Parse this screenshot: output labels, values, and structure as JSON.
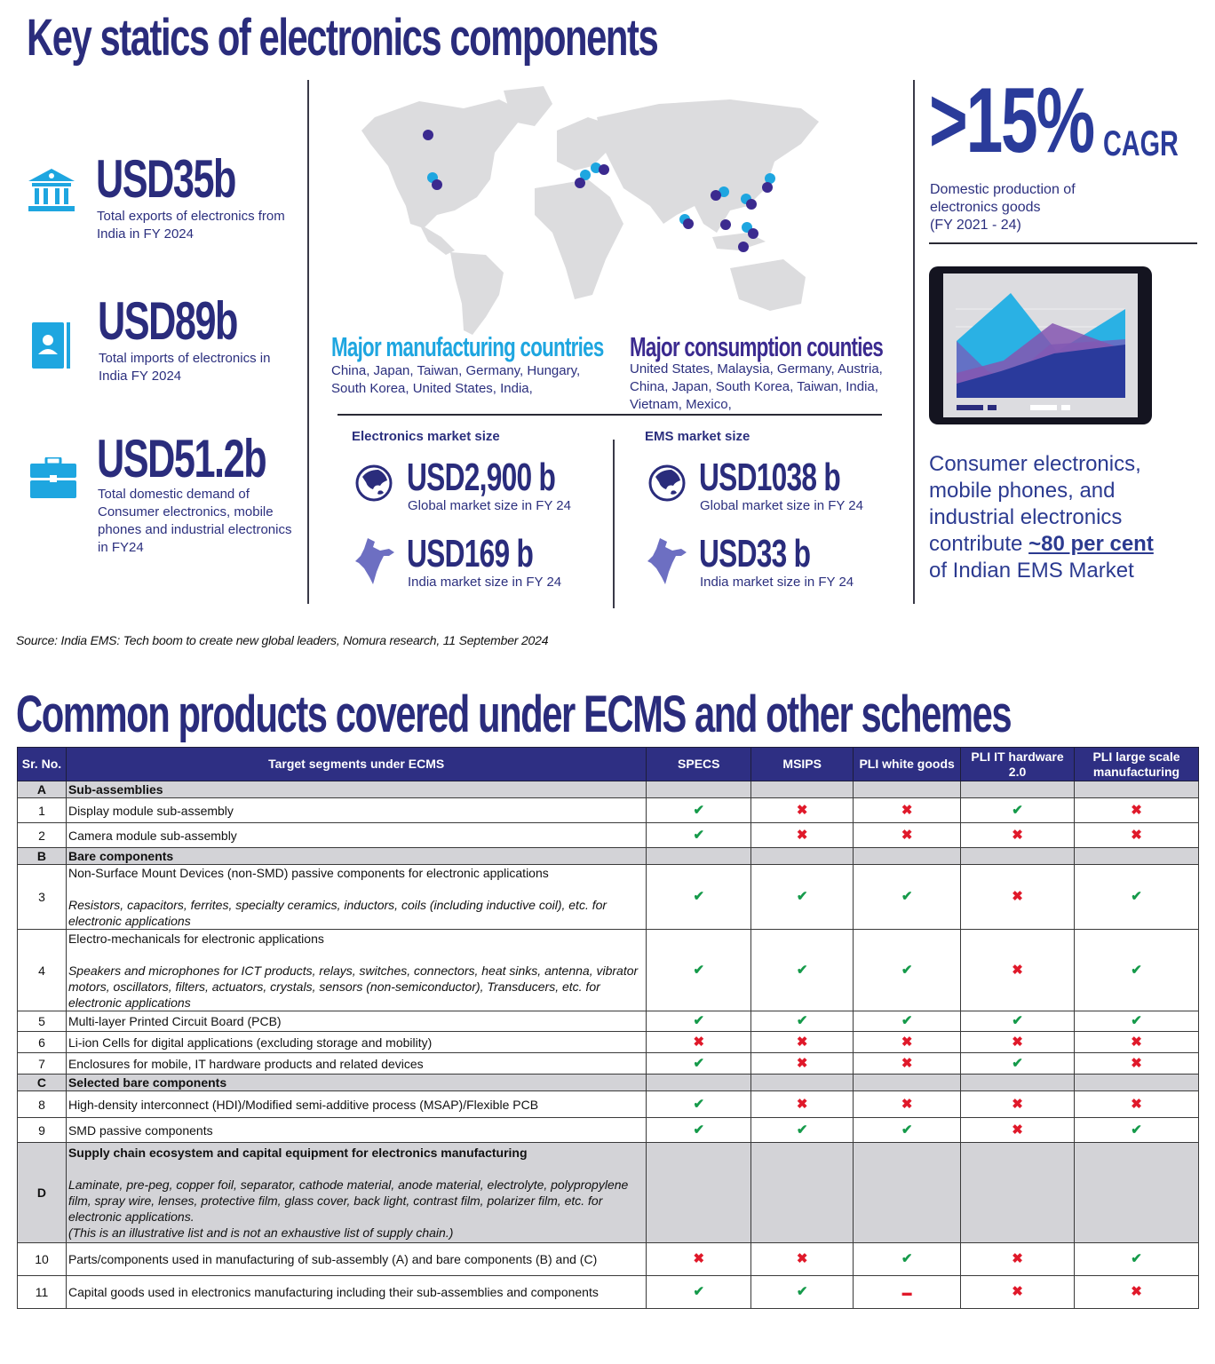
{
  "section1": {
    "title": "Key statics of electronics components",
    "stats": [
      {
        "icon": "bank-icon",
        "value": "USD35b",
        "description": "Total exports of electronics from India in FY 2024"
      },
      {
        "icon": "contact-book-icon",
        "value": "USD89b",
        "description": "Total imports of electronics in India FY 2024"
      },
      {
        "icon": "briefcase-icon",
        "value": "USD51.2b",
        "description": "Total domestic demand of Consumer electronics, mobile phones and industrial electronics in FY24"
      }
    ],
    "map": {
      "manufacturing": {
        "heading": "Major manufacturing countries",
        "countries": "China, Japan, Taiwan, Germany, Hungary, South Korea, United States, India,",
        "color": "#1ea6e0"
      },
      "consumption": {
        "heading": "Major consumption counties",
        "countries": "United States, Malaysia, Germany, Austria, China, Japan, South Korea, Taiwan, India, Vietnam, Mexico,",
        "color": "#3b2a8f"
      }
    },
    "market": {
      "electronics": {
        "label": "Electronics market size",
        "global": {
          "value": "USD2,900 b",
          "description": "Global market size in FY 24"
        },
        "india": {
          "value": "USD169 b",
          "description": "India market size in FY 24"
        }
      },
      "ems": {
        "label": "EMS market size",
        "global": {
          "value": "USD1038 b",
          "description": "Global market size in FY 24"
        },
        "india": {
          "value": "USD33 b",
          "description": "India market size in FY 24"
        }
      }
    },
    "cagr": {
      "value": ">15%",
      "unit": "CAGR",
      "description_line1": "Domestic production of",
      "description_line2": "electronics goods",
      "description_line3": "(FY 2021 - 24)"
    },
    "contribution": {
      "line1": "Consumer electronics,",
      "line2": "mobile phones, and",
      "line3": "industrial electronics",
      "line4_prefix": "contribute ",
      "highlight": "~80 per cent",
      "line5": "of Indian EMS Market"
    },
    "source": "Source: India EMS: Tech boom to create new global leaders, Nomura research, 11 September 2024"
  },
  "section2": {
    "title": "Common products covered under ECMS and other schemes",
    "table": {
      "headers": [
        "Sr. No.",
        "Target segments under ECMS",
        "SPECS",
        "MSIPS",
        "PLI white goods",
        "PLI IT hardware 2.0",
        "PLI large scale manufacturing"
      ],
      "symbols": {
        "yes": "✔",
        "no": "✖",
        "partial": "▬"
      },
      "rows": [
        {
          "type": "section",
          "sr": "A",
          "title": "Sub-assemblies"
        },
        {
          "type": "item",
          "sr": "1",
          "title": "Display module sub-assembly",
          "detail": "",
          "marks": [
            "yes",
            "no",
            "no",
            "yes",
            "no"
          ]
        },
        {
          "type": "item",
          "sr": "2",
          "title": "Camera module sub-assembly",
          "detail": "",
          "marks": [
            "yes",
            "no",
            "no",
            "no",
            "no"
          ]
        },
        {
          "type": "section",
          "sr": "B",
          "title": "Bare components"
        },
        {
          "type": "item",
          "sr": "3",
          "title": "Non-Surface Mount Devices (non-SMD) passive components for electronic applications",
          "detail": "Resistors, capacitors, ferrites, specialty ceramics, inductors, coils (including inductive coil), etc. for electronic applications",
          "marks": [
            "yes",
            "yes",
            "yes",
            "no",
            "yes"
          ]
        },
        {
          "type": "item",
          "sr": "4",
          "title": "Electro-mechanicals for electronic applications",
          "detail": "Speakers and microphones for ICT products, relays, switches, connectors, heat sinks, antenna, vibrator motors, oscillators, filters, actuators, crystals, sensors (non-semiconductor), Transducers, etc. for electronic applications",
          "marks": [
            "yes",
            "yes",
            "yes",
            "no",
            "yes"
          ]
        },
        {
          "type": "item",
          "sr": "5",
          "title": "Multi-layer Printed Circuit Board (PCB)",
          "detail": "",
          "marks": [
            "yes",
            "yes",
            "yes",
            "yes",
            "yes"
          ]
        },
        {
          "type": "item",
          "sr": "6",
          "title": "Li-ion Cells for digital applications (excluding storage and mobility)",
          "detail": "",
          "marks": [
            "no",
            "no",
            "no",
            "no",
            "no"
          ]
        },
        {
          "type": "item",
          "sr": "7",
          "title": "Enclosures for mobile, IT hardware products and related devices",
          "detail": "",
          "marks": [
            "yes",
            "no",
            "no",
            "yes",
            "no"
          ]
        },
        {
          "type": "section",
          "sr": "C",
          "title": "Selected bare components"
        },
        {
          "type": "item",
          "sr": "8",
          "title": "High-density interconnect (HDI)/Modified semi-additive process (MSAP)/Flexible PCB",
          "detail": "",
          "marks": [
            "yes",
            "no",
            "no",
            "no",
            "no"
          ]
        },
        {
          "type": "item",
          "sr": "9",
          "title": "SMD passive components",
          "detail": "",
          "marks": [
            "yes",
            "yes",
            "yes",
            "no",
            "yes"
          ]
        },
        {
          "type": "section",
          "sr": "D",
          "title": "Supply chain ecosystem and capital equipment for electronics manufacturing",
          "detail": "Laminate, pre-peg, copper foil, separator, cathode material, anode material, electrolyte, polypropylene film, spray wire, lenses, protective film, glass cover, back light, contrast film, polarizer film, etc. for electronic applications.",
          "note": "(This is an illustrative list and is not an exhaustive list of supply chain.)"
        },
        {
          "type": "item",
          "sr": "10",
          "title": "Parts/components used in manufacturing of sub-assembly (A) and bare components (B) and (C)",
          "detail": "",
          "marks": [
            "no",
            "no",
            "yes",
            "no",
            "yes"
          ]
        },
        {
          "type": "item",
          "sr": "11",
          "title": "Capital goods used in electronics manufacturing including their sub-assemblies and components",
          "detail": "",
          "marks": [
            "yes",
            "yes",
            "partial",
            "no",
            "no"
          ]
        }
      ]
    }
  },
  "colors": {
    "navy": "#2a2c7c",
    "cyan": "#1ea6e0",
    "purple": "#3b2a8f",
    "table_header": "#2e2f83",
    "section_row": "#d3d3d7",
    "tick": "#159a4a",
    "cross": "#e0192a"
  }
}
